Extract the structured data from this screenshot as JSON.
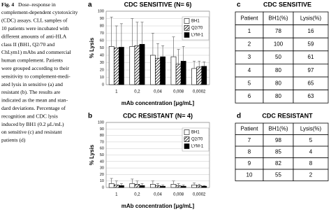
{
  "caption": {
    "label": "Fig. 4",
    "lines": [
      "Dose–response in",
      "complement-dependent cytotoxicity",
      "(CDC) assays. CLL samples of",
      "10 patients were incubated with",
      "different amounts of anti-HLA",
      "class II (BH1, Q2/70 and",
      "ChLym1) mAbs and commercial",
      "human complement. Patients",
      "were grouped according to their",
      "sensitivity to complement-medi-",
      "ated lysis in sensitive (a) and",
      "resistant (b). The results are",
      "indicated as the mean and stan-",
      "dard deviations. Percentage of",
      "recognition and CDC lysis",
      "induced by BH1 (0.2 μL/mL)",
      "on sensitive (c) and resistant",
      "patients (d)"
    ]
  },
  "chart_data": [
    {
      "type": "bar",
      "panel": "a",
      "title": "CDC SENSITIVE (N= 6)",
      "ylabel": "% Lysis",
      "xlabel": "mAb concentration [μg/mL]",
      "categories": [
        "1",
        "0,2",
        "0,04",
        "0,008",
        "0,0002"
      ],
      "ylim": [
        0,
        100
      ],
      "yticks": [
        0,
        10,
        20,
        30,
        40,
        50,
        60,
        70,
        80,
        90,
        100
      ],
      "grid": true,
      "legend": "upper right",
      "series": [
        {
          "name": "BH1",
          "color": "#ffffff",
          "values": [
            52,
            52,
            40,
            38,
            22
          ],
          "errors": [
            40,
            38,
            30,
            27,
            10
          ]
        },
        {
          "name": "Q2/70",
          "color": "#ffffff",
          "pattern": "hatch",
          "values": [
            50,
            53,
            36,
            28,
            24
          ],
          "errors": [
            30,
            32,
            20,
            20,
            8
          ]
        },
        {
          "name": "LYM-1",
          "color": "#000000",
          "values": [
            51,
            55,
            38,
            32,
            25
          ],
          "errors": [
            32,
            30,
            15,
            20,
            6
          ]
        }
      ]
    },
    {
      "type": "bar",
      "panel": "b",
      "title": "CDC RESISTANT (N= 4)",
      "ylabel": "% Lysis",
      "xlabel": "mAb concentration [μg/mL]",
      "categories": [
        "1",
        "0,2",
        "0,04",
        "0,008",
        "0,0002"
      ],
      "ylim": [
        0,
        100
      ],
      "yticks": [
        0,
        10,
        20,
        30,
        40,
        50,
        60,
        70,
        80,
        90,
        100
      ],
      "grid": true,
      "legend": "upper right",
      "series": [
        {
          "name": "BH1",
          "color": "#ffffff",
          "values": [
            6,
            6,
            5,
            5,
            4
          ],
          "errors": [
            8,
            7,
            5,
            5,
            3
          ]
        },
        {
          "name": "Q2/70",
          "color": "#ffffff",
          "pattern": "hatch",
          "values": [
            4,
            5,
            3,
            3,
            3
          ],
          "errors": [
            6,
            5,
            3,
            3,
            2
          ]
        },
        {
          "name": "LYM-1",
          "color": "#000000",
          "values": [
            3,
            3,
            2,
            2,
            2
          ],
          "errors": [
            3,
            3,
            2,
            2,
            1
          ]
        }
      ]
    }
  ],
  "tables": [
    {
      "panel": "c",
      "title": "CDC SENSITIVE",
      "header": [
        "Patient",
        "BH1(%)",
        "Lysis(%)"
      ],
      "rows": [
        [
          1,
          78,
          16
        ],
        [
          2,
          100,
          59
        ],
        [
          3,
          50,
          61
        ],
        [
          4,
          80,
          97
        ],
        [
          5,
          80,
          65
        ],
        [
          6,
          80,
          63
        ]
      ]
    },
    {
      "panel": "d",
      "title": "CDC RESISTANT",
      "header": [
        "Patient",
        "BH1(%)",
        "Lysis(%)"
      ],
      "rows": [
        [
          7,
          98,
          5
        ],
        [
          8,
          85,
          4
        ],
        [
          9,
          82,
          8
        ],
        [
          10,
          55,
          2
        ]
      ]
    }
  ]
}
